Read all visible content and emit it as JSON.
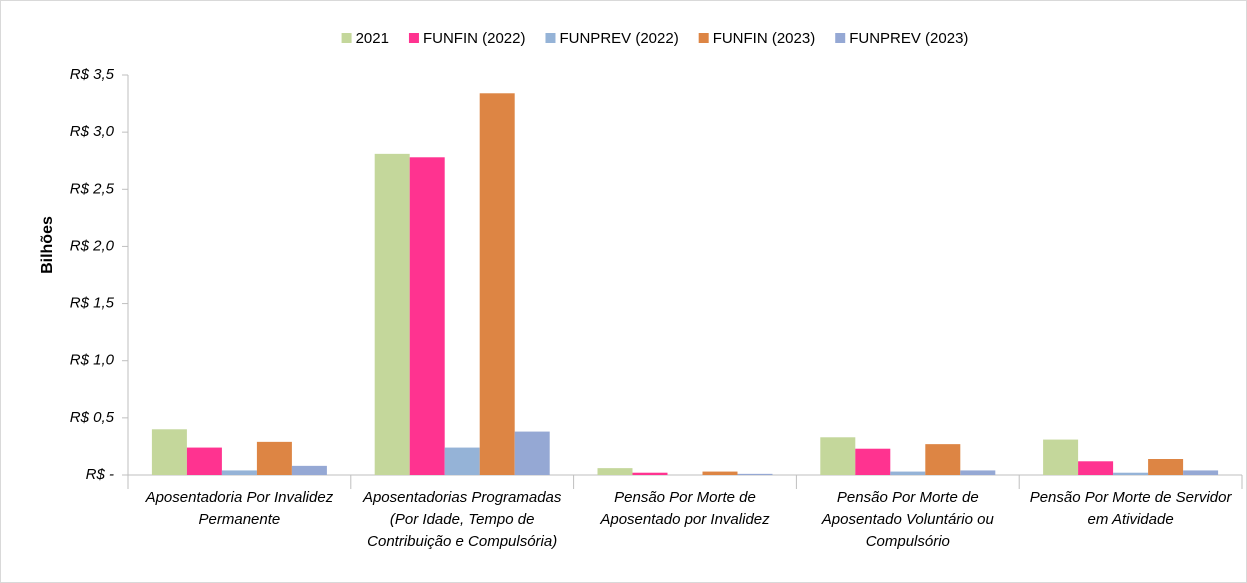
{
  "chart_data": {
    "type": "bar",
    "y_label": "Bilhões",
    "categories": [
      "Aposentadoria Por Invalidez Permanente",
      "Aposentadorias Programadas (Por Idade, Tempo de Contribuição e Compulsória)",
      "Pensão Por Morte de Aposentado por Invalidez",
      "Pensão Por Morte de Aposentado Voluntário ou Compulsório",
      "Pensão Por Morte de Servidor em Atividade"
    ],
    "series": [
      {
        "name": "2021",
        "color": "#c4d79b",
        "values": [
          0.4,
          2.81,
          0.06,
          0.33,
          0.31
        ]
      },
      {
        "name": "FUNFIN (2022)",
        "color": "#ff3390",
        "values": [
          0.24,
          2.78,
          0.02,
          0.23,
          0.12
        ]
      },
      {
        "name": "FUNPREV (2022)",
        "color": "#95b3d7",
        "values": [
          0.04,
          0.24,
          0,
          0.03,
          0.02
        ]
      },
      {
        "name": "FUNFIN (2023)",
        "color": "#dd8544",
        "values": [
          0.29,
          3.34,
          0.03,
          0.27,
          0.14
        ]
      },
      {
        "name": "FUNPREV (2023)",
        "color": "#95a8d4",
        "values": [
          0.08,
          0.38,
          0.01,
          0.04,
          0.04
        ]
      }
    ],
    "ylim": [
      0,
      3.5
    ],
    "yticks": [
      {
        "value": 0,
        "label": "R$ -"
      },
      {
        "value": 0.5,
        "label": "R$ 0,5"
      },
      {
        "value": 1,
        "label": "R$ 1,0"
      },
      {
        "value": 1.5,
        "label": "R$ 1,5"
      },
      {
        "value": 2,
        "label": "R$ 2,0"
      },
      {
        "value": 2.5,
        "label": "R$ 2,5"
      },
      {
        "value": 3,
        "label": "R$ 3,0"
      },
      {
        "value": 3.5,
        "label": "R$ 3,5"
      }
    ],
    "grid": false,
    "legend": "top"
  }
}
